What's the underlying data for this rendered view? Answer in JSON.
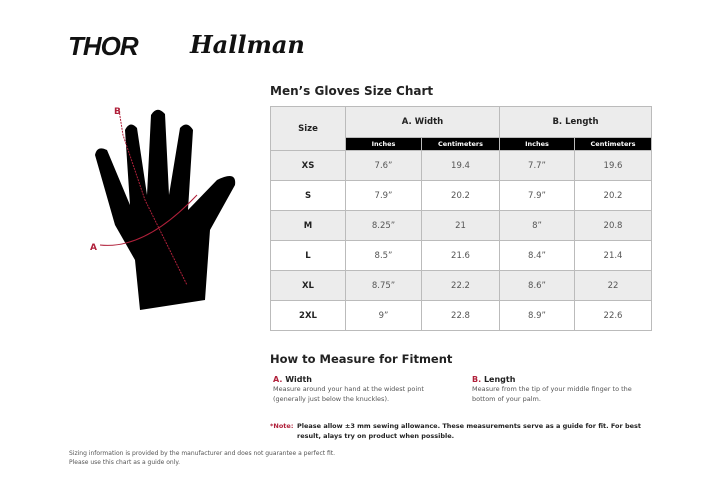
{
  "brands": [
    "THOR",
    "Hallman"
  ],
  "title": "Men’s Gloves Size Chart",
  "table": {
    "size_header": "Size",
    "width_header": "A. Width",
    "length_header": "B. Length",
    "sub_headers": [
      "Inches",
      "Centimeters",
      "Inches",
      "Centimeters"
    ],
    "rows": [
      [
        "XS",
        "7.6”",
        "19.4",
        "7.7”",
        "19.6"
      ],
      [
        "S",
        "7.9”",
        "20.2",
        "7.9”",
        "20.2"
      ],
      [
        "M",
        "8.25”",
        "21",
        "8”",
        "20.8"
      ],
      [
        "L",
        "8.5”",
        "21.6",
        "8.4”",
        "21.4"
      ],
      [
        "XL",
        "8.75”",
        "22.2",
        "8.6”",
        "22"
      ],
      [
        "2XL",
        "9”",
        "22.8",
        "8.9”",
        "22.6"
      ]
    ]
  },
  "diagram": {
    "label_a": "A",
    "label_b": "B",
    "accent": "#b0203a"
  },
  "howto": {
    "title": "How to Measure for Fitment",
    "a_letter": "A.",
    "a_label": "Width",
    "a_desc": "Measure around your hand at the widest point (generally just below the knuckles).",
    "b_letter": "B.",
    "b_label": "Length",
    "b_desc": "Measure from the tip of your middle finger to the bottom of your palm."
  },
  "note": {
    "label": "*Note:",
    "text": "Please allow ±3 mm sewing allowance. These measurements serve as a guide for fit. For best result, alays try on product when possible."
  },
  "disclaimer": [
    "Sizing information is provided by the manufacturer and does not guarantee a perfect fit.",
    "Please use this chart as a guide only."
  ]
}
